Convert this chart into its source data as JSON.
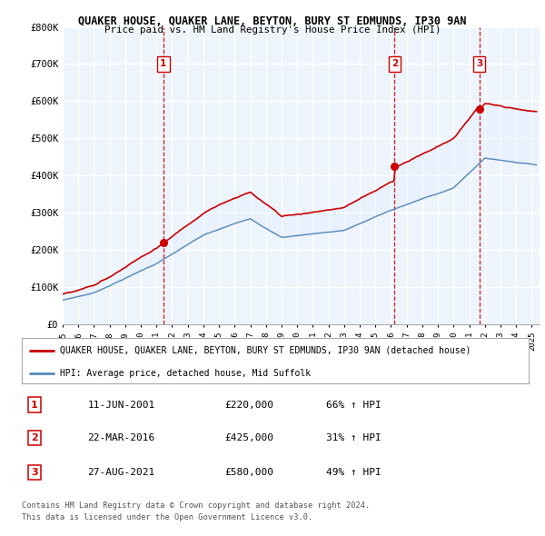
{
  "title": "QUAKER HOUSE, QUAKER LANE, BEYTON, BURY ST EDMUNDS, IP30 9AN",
  "subtitle": "Price paid vs. HM Land Registry's House Price Index (HPI)",
  "ylim": [
    0,
    800000
  ],
  "xlim_start": 1995.0,
  "xlim_end": 2025.5,
  "yticks": [
    0,
    100000,
    200000,
    300000,
    400000,
    500000,
    600000,
    700000,
    800000
  ],
  "ytick_labels": [
    "£0",
    "£100K",
    "£200K",
    "£300K",
    "£400K",
    "£500K",
    "£600K",
    "£700K",
    "£800K"
  ],
  "sale_dates": [
    2001.44,
    2016.22,
    2021.65
  ],
  "sale_prices": [
    220000,
    425000,
    580000
  ],
  "sale_labels": [
    "1",
    "2",
    "3"
  ],
  "sale_date_strs": [
    "11-JUN-2001",
    "22-MAR-2016",
    "27-AUG-2021"
  ],
  "sale_price_strs": [
    "£220,000",
    "£425,000",
    "£580,000"
  ],
  "sale_hpi_strs": [
    "66% ↑ HPI",
    "31% ↑ HPI",
    "49% ↑ HPI"
  ],
  "red_line_color": "#cc0000",
  "blue_line_color": "#5588bb",
  "fill_color": "#ddeeff",
  "dashed_color": "#cc0000",
  "grid_color": "#cccccc",
  "background_color": "#ffffff",
  "chart_bg": "#eef4fb",
  "legend_label_red": "QUAKER HOUSE, QUAKER LANE, BEYTON, BURY ST EDMUNDS, IP30 9AN (detached house)",
  "legend_label_blue": "HPI: Average price, detached house, Mid Suffolk",
  "footer1": "Contains HM Land Registry data © Crown copyright and database right 2024.",
  "footer2": "This data is licensed under the Open Government Licence v3.0."
}
